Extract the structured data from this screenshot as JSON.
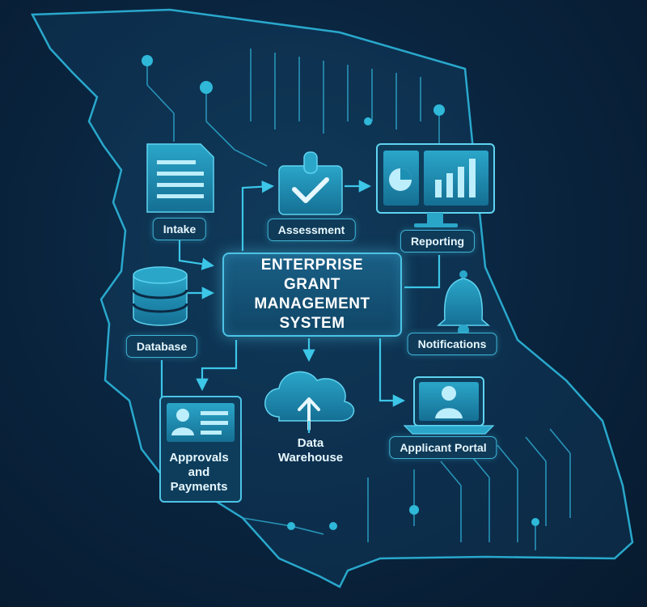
{
  "system": {
    "title": "ENTERPRISE GRANT MANAGEMENT SYSTEM"
  },
  "nodes": {
    "intake": "Intake",
    "assessment": "Assessment",
    "reporting": "Reporting",
    "database": "Database",
    "notifications": "Notifications",
    "approvals": "Approvals and Payments",
    "warehouse": "Data Warehouse",
    "portal": "Applicant Portal"
  },
  "colors": {
    "background": "#0a2540",
    "line": "#2fb8d8",
    "icon_fill": "#1d8fb3",
    "label_bg": "#0f3a58"
  },
  "icons": [
    "document-icon",
    "checkmark-icon",
    "dashboard-chart-icon",
    "database-icon",
    "bell-icon",
    "id-card-icon",
    "cloud-upload-icon",
    "user-laptop-icon"
  ]
}
